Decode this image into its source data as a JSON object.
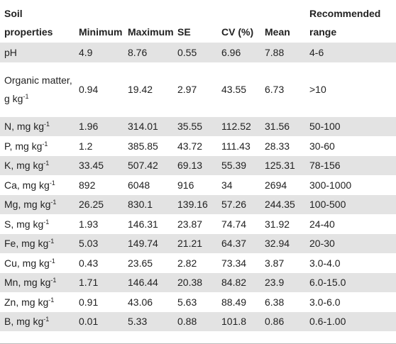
{
  "table": {
    "headers": [
      "Soil properties",
      "Minimum",
      "Maximum",
      "SE",
      "CV (%)",
      "Mean",
      "Recommended range"
    ],
    "header_lines": [
      [
        "Soil",
        "properties"
      ],
      [
        "",
        "Minimum"
      ],
      [
        "",
        "Maximum"
      ],
      [
        "",
        "SE"
      ],
      [
        "",
        "CV (%)"
      ],
      [
        "",
        "Mean"
      ],
      [
        "Recommended",
        "range"
      ]
    ],
    "rows": [
      {
        "property": "pH",
        "unit_base": "",
        "unit_exp": "",
        "minimum": "4.9",
        "maximum": "8.76",
        "se": "0.55",
        "cv": "6.96",
        "mean": "7.88",
        "range": "4-6"
      },
      {
        "property": "Organic matter, g kg",
        "unit_base": "",
        "unit_exp": "-1",
        "minimum": "0.94",
        "maximum": "19.42",
        "se": "2.97",
        "cv": "43.55",
        "mean": "6.73",
        "range": ">10"
      },
      {
        "property": "N, mg kg",
        "unit_base": "",
        "unit_exp": "-1",
        "minimum": "1.96",
        "maximum": "314.01",
        "se": "35.55",
        "cv": "112.52",
        "mean": "31.56",
        "range": "50-100"
      },
      {
        "property": "P, mg kg",
        "unit_base": "",
        "unit_exp": "-1",
        "minimum": "1.2",
        "maximum": "385.85",
        "se": "43.72",
        "cv": "111.43",
        "mean": "28.33",
        "range": "30-60"
      },
      {
        "property": "K, mg kg",
        "unit_base": "",
        "unit_exp": "-1",
        "minimum": "33.45",
        "maximum": "507.42",
        "se": "69.13",
        "cv": "55.39",
        "mean": "125.31",
        "range": "78-156"
      },
      {
        "property": "Ca, mg kg",
        "unit_base": "",
        "unit_exp": "-1",
        "minimum": "892",
        "maximum": "6048",
        "se": "916",
        "cv": "34",
        "mean": "2694",
        "range": "300-1000"
      },
      {
        "property": "Mg, mg kg",
        "unit_base": "",
        "unit_exp": "-1",
        "minimum": "26.25",
        "maximum": "830.1",
        "se": "139.16",
        "cv": "57.26",
        "mean": "244.35",
        "range": "100-500"
      },
      {
        "property": "S, mg kg",
        "unit_base": "",
        "unit_exp": "-1",
        "minimum": "1.93",
        "maximum": "146.31",
        "se": "23.87",
        "cv": "74.74",
        "mean": "31.92",
        "range": "24-40"
      },
      {
        "property": "Fe, mg kg",
        "unit_base": "",
        "unit_exp": "-1",
        "minimum": "5.03",
        "maximum": "149.74",
        "se": "21.21",
        "cv": "64.37",
        "mean": "32.94",
        "range": "20-30"
      },
      {
        "property": "Cu, mg kg",
        "unit_base": "",
        "unit_exp": "-1",
        "minimum": "0.43",
        "maximum": "23.65",
        "se": "2.82",
        "cv": "73.34",
        "mean": "3.87",
        "range": "3.0-4.0"
      },
      {
        "property": "Mn, mg kg",
        "unit_base": "",
        "unit_exp": "-1",
        "minimum": "1.71",
        "maximum": "146.44",
        "se": "20.38",
        "cv": "84.82",
        "mean": "23.9",
        "range": "6.0-15.0"
      },
      {
        "property": "Zn, mg kg",
        "unit_base": "",
        "unit_exp": "-1",
        "minimum": "0.91",
        "maximum": "43.06",
        "se": "5.63",
        "cv": "88.49",
        "mean": "6.38",
        "range": "3.0-6.0"
      },
      {
        "property": "B, mg kg",
        "unit_base": "",
        "unit_exp": "-1",
        "minimum": "0.01",
        "maximum": "5.33",
        "se": "0.88",
        "cv": "101.8",
        "mean": "0.86",
        "range": "0.6-1.00"
      }
    ]
  },
  "colors": {
    "row_shade": "#e3e3e3",
    "text": "#222222",
    "background": "#ffffff"
  }
}
